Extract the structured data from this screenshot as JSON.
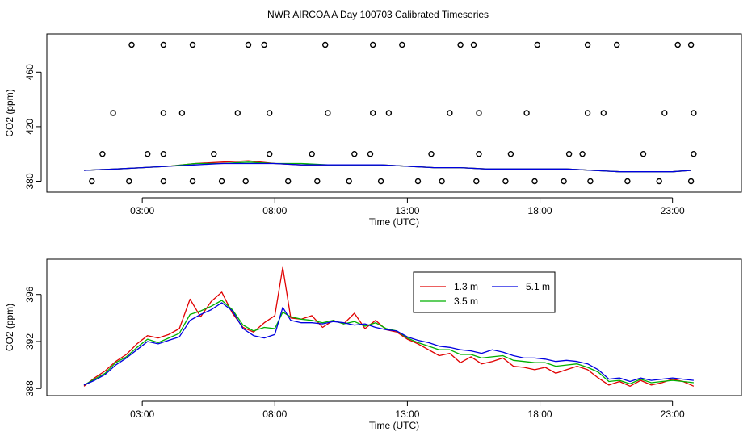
{
  "title": "NWR AIRCOA A  Day 100703  Calibrated Timeseries",
  "colors": {
    "series_1_3m": "#e00000",
    "series_3_5m": "#00b000",
    "series_5_1m": "#0000e0",
    "axis": "#000000"
  },
  "chart_data": [
    {
      "type": "line+scatter",
      "name": "top-panel",
      "xlabel": "Time (UTC)",
      "ylabel": "CO2 (ppm)",
      "xlim": [
        -0.6,
        25.6
      ],
      "ylim": [
        372,
        488
      ],
      "x_ticks": [
        3,
        8,
        13,
        18,
        23
      ],
      "x_tick_labels": [
        "03:00",
        "08:00",
        "13:00",
        "18:00",
        "23:00"
      ],
      "y_ticks": [
        380,
        420,
        460
      ],
      "y_tick_labels": [
        "380",
        "420",
        "460"
      ],
      "series": [
        {
          "name": "1.3 m",
          "color": "#e00000",
          "x": [
            0.8,
            2,
            3,
            4,
            5,
            6,
            7,
            8,
            9,
            10,
            11,
            12,
            13,
            14,
            15,
            16,
            17,
            18,
            19,
            20,
            21,
            22,
            23,
            23.7
          ],
          "values": [
            388,
            389,
            390,
            391,
            393,
            394,
            395,
            393,
            392,
            392,
            392,
            392,
            391,
            390,
            390,
            389,
            389,
            389,
            389,
            388,
            387,
            387,
            387,
            388
          ]
        },
        {
          "name": "3.5 m",
          "color": "#00b000",
          "x": [
            0.8,
            2,
            3,
            4,
            5,
            6,
            7,
            8,
            9,
            10,
            11,
            12,
            13,
            14,
            15,
            16,
            17,
            18,
            19,
            20,
            21,
            22,
            23,
            23.7
          ],
          "values": [
            388,
            389,
            390,
            391,
            393,
            393,
            394,
            393,
            393,
            392,
            392,
            392,
            391,
            390,
            390,
            389,
            389,
            389,
            389,
            388,
            387,
            387,
            387,
            388
          ]
        },
        {
          "name": "5.1 m",
          "color": "#0000e0",
          "x": [
            0.8,
            2,
            3,
            4,
            5,
            6,
            7,
            8,
            9,
            10,
            11,
            12,
            13,
            14,
            15,
            16,
            17,
            18,
            19,
            20,
            21,
            22,
            23,
            23.7
          ],
          "values": [
            388,
            389,
            390,
            391,
            392,
            393,
            393,
            393,
            392,
            392,
            392,
            392,
            391,
            390,
            390,
            389,
            389,
            389,
            389,
            388,
            387,
            387,
            387,
            388
          ]
        }
      ],
      "scatter": {
        "x": [
          1.1,
          2.5,
          3.8,
          4.9,
          6,
          6.9,
          8.5,
          9.6,
          10.8,
          12,
          13.4,
          14.3,
          15.6,
          16.7,
          17.8,
          18.9,
          19.9,
          21.3,
          22.5,
          23.7,
          1.5,
          3.2,
          3.8,
          5.7,
          7.8,
          9.4,
          11,
          11.6,
          13.9,
          15.7,
          16.9,
          19.1,
          19.6,
          21.9,
          23.8,
          1.9,
          3.8,
          4.5,
          6.6,
          7.8,
          10,
          11.7,
          12.3,
          14.6,
          15.7,
          17.5,
          19.8,
          20.4,
          22.7,
          23.8,
          2.6,
          3.8,
          4.9,
          7,
          7.6,
          9.9,
          11.7,
          12.8,
          15,
          15.5,
          17.9,
          19.8,
          20.9,
          23.2,
          23.7
        ],
        "values": [
          380,
          380,
          380,
          380,
          380,
          380,
          380,
          380,
          380,
          380,
          380,
          380,
          380,
          380,
          380,
          380,
          380,
          380,
          380,
          380,
          400,
          400,
          400,
          400,
          400,
          400,
          400,
          400,
          400,
          400,
          400,
          400,
          400,
          400,
          400,
          430,
          430,
          430,
          430,
          430,
          430,
          430,
          430,
          430,
          430,
          430,
          430,
          430,
          430,
          430,
          480,
          480,
          480,
          480,
          480,
          480,
          480,
          480,
          480,
          480,
          480,
          480,
          480,
          480,
          480
        ]
      }
    },
    {
      "type": "line",
      "name": "bottom-panel",
      "xlabel": "Time (UTC)",
      "ylabel": "CO2 (ppm)",
      "xlim": [
        -0.6,
        25.6
      ],
      "ylim": [
        387.4,
        399.0
      ],
      "x_ticks": [
        3,
        8,
        13,
        18,
        23
      ],
      "x_tick_labels": [
        "03:00",
        "08:00",
        "13:00",
        "18:00",
        "23:00"
      ],
      "y_ticks": [
        388,
        392,
        396
      ],
      "y_tick_labels": [
        "388",
        "392",
        "396"
      ],
      "legend": {
        "location": "top-center",
        "entries": [
          "1.3 m",
          "3.5 m",
          "5.1 m"
        ]
      },
      "series": [
        {
          "name": "1.3 m",
          "color": "#e00000",
          "x": [
            0.8,
            1.2,
            1.6,
            2,
            2.4,
            2.8,
            3.2,
            3.6,
            4,
            4.4,
            4.8,
            5.2,
            5.6,
            6,
            6.4,
            6.8,
            7.2,
            7.6,
            8,
            8.3,
            8.6,
            9,
            9.4,
            9.8,
            10.2,
            10.6,
            11,
            11.4,
            11.8,
            12.2,
            12.6,
            13,
            13.4,
            13.8,
            14.2,
            14.6,
            15,
            15.4,
            15.8,
            16.2,
            16.6,
            17,
            17.4,
            17.8,
            18.2,
            18.6,
            19,
            19.4,
            19.8,
            20.2,
            20.6,
            21,
            21.4,
            21.8,
            22.2,
            22.6,
            23,
            23.4,
            23.8
          ],
          "values": [
            388.2,
            388.9,
            389.5,
            390.3,
            390.9,
            391.8,
            392.5,
            392.3,
            392.6,
            393.1,
            395.6,
            394.1,
            395.4,
            396.2,
            394.4,
            393.2,
            392.8,
            393.6,
            394.2,
            398.3,
            394.0,
            393.9,
            394.2,
            393.2,
            393.8,
            393.5,
            394.4,
            393.1,
            393.8,
            393.0,
            392.8,
            392.2,
            391.8,
            391.3,
            390.8,
            391.0,
            390.2,
            390.7,
            390.1,
            390.3,
            390.6,
            389.9,
            389.8,
            389.6,
            389.8,
            389.3,
            389.6,
            389.9,
            389.6,
            388.9,
            388.3,
            388.6,
            388.2,
            388.7,
            388.3,
            388.5,
            388.8,
            388.6,
            388.2
          ]
        },
        {
          "name": "3.5 m",
          "color": "#00b000",
          "x": [
            0.8,
            1.2,
            1.6,
            2,
            2.4,
            2.8,
            3.2,
            3.6,
            4,
            4.4,
            4.8,
            5.2,
            5.6,
            6,
            6.4,
            6.8,
            7.2,
            7.6,
            8,
            8.3,
            8.6,
            9,
            9.4,
            9.8,
            10.2,
            10.6,
            11,
            11.4,
            11.8,
            12.2,
            12.6,
            13,
            13.4,
            13.8,
            14.2,
            14.6,
            15,
            15.4,
            15.8,
            16.2,
            16.6,
            17,
            17.4,
            17.8,
            18.2,
            18.6,
            19,
            19.4,
            19.8,
            20.2,
            20.6,
            21,
            21.4,
            21.8,
            22.2,
            22.6,
            23,
            23.4,
            23.8
          ],
          "values": [
            388.3,
            388.8,
            389.3,
            390.2,
            390.7,
            391.5,
            392.2,
            391.9,
            392.3,
            392.7,
            394.3,
            394.6,
            395.0,
            395.5,
            394.7,
            393.4,
            392.9,
            393.2,
            393.1,
            394.5,
            394.1,
            393.9,
            393.8,
            393.6,
            393.8,
            393.5,
            393.7,
            393.3,
            393.6,
            393.1,
            392.9,
            392.3,
            391.9,
            391.6,
            391.3,
            391.3,
            390.9,
            390.9,
            390.6,
            390.7,
            390.8,
            390.4,
            390.3,
            390.2,
            390.2,
            389.9,
            390.0,
            390.1,
            389.8,
            389.4,
            388.6,
            388.7,
            388.4,
            388.8,
            388.5,
            388.6,
            388.7,
            388.6,
            388.5
          ]
        },
        {
          "name": "5.1 m",
          "color": "#0000e0",
          "x": [
            0.8,
            1.2,
            1.6,
            2,
            2.4,
            2.8,
            3.2,
            3.6,
            4,
            4.4,
            4.8,
            5.2,
            5.6,
            6,
            6.4,
            6.8,
            7.2,
            7.6,
            8,
            8.3,
            8.6,
            9,
            9.4,
            9.8,
            10.2,
            10.6,
            11,
            11.4,
            11.8,
            12.2,
            12.6,
            13,
            13.4,
            13.8,
            14.2,
            14.6,
            15,
            15.4,
            15.8,
            16.2,
            16.6,
            17,
            17.4,
            17.8,
            18.2,
            18.6,
            19,
            19.4,
            19.8,
            20.2,
            20.6,
            21,
            21.4,
            21.8,
            22.2,
            22.6,
            23,
            23.4,
            23.8
          ],
          "values": [
            388.3,
            388.7,
            389.2,
            390.0,
            390.6,
            391.3,
            392.0,
            391.8,
            392.1,
            392.4,
            393.8,
            394.3,
            394.7,
            395.3,
            394.6,
            393.1,
            392.5,
            392.3,
            392.6,
            394.9,
            393.8,
            393.6,
            393.6,
            393.5,
            393.7,
            393.6,
            393.4,
            393.5,
            393.2,
            393.0,
            392.9,
            392.4,
            392.1,
            391.9,
            391.6,
            391.5,
            391.3,
            391.2,
            391.0,
            391.3,
            391.1,
            390.8,
            390.6,
            390.6,
            390.5,
            390.3,
            390.4,
            390.3,
            390.1,
            389.6,
            388.8,
            388.9,
            388.6,
            388.9,
            388.7,
            388.8,
            388.9,
            388.8,
            388.7
          ]
        }
      ]
    }
  ]
}
